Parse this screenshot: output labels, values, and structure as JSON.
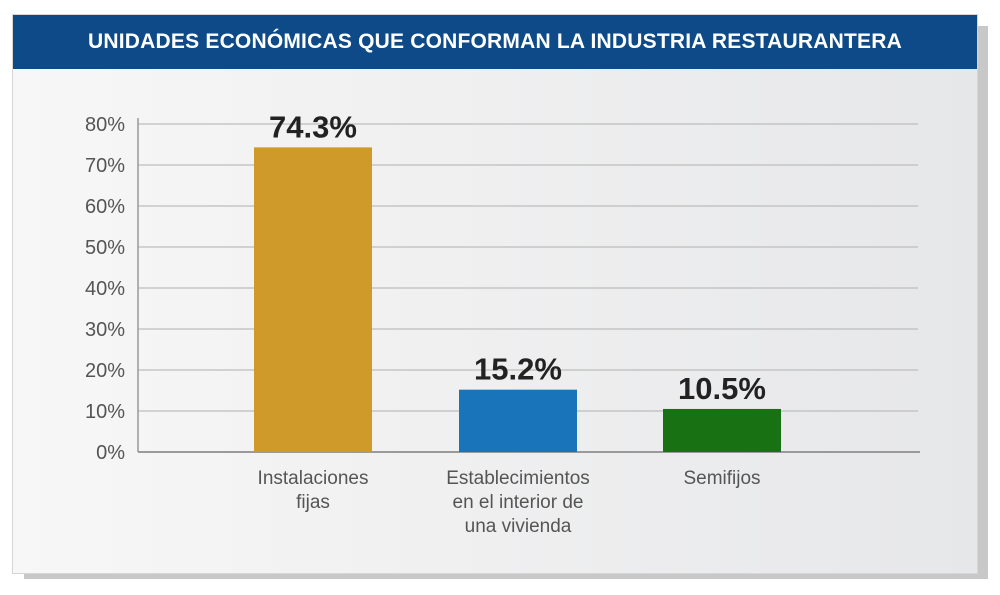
{
  "header": {
    "title": "UNIDADES ECONÓMICAS QUE CONFORMAN LA INDUSTRIA RESTAURANTERA"
  },
  "colors": {
    "header_bg": "#0e4a87",
    "gridline": "#bdbdbd",
    "axis": "#9a9a9a"
  },
  "chart_data": {
    "type": "bar",
    "title": "UNIDADES ECONÓMICAS QUE CONFORMAN LA INDUSTRIA RESTAURANTERA",
    "categories": [
      [
        "Instalaciones",
        "fijas"
      ],
      [
        "Establecimientos",
        "en el interior de",
        "una vivienda"
      ],
      [
        "Semifijos"
      ]
    ],
    "values": [
      74.3,
      15.2,
      10.5
    ],
    "value_labels": [
      "74.3%",
      "15.2%",
      "10.5%"
    ],
    "bar_colors": [
      "#d09a2a",
      "#1a74ba",
      "#187214"
    ],
    "yticks": [
      "0%",
      "10%",
      "20%",
      "30%",
      "40%",
      "50%",
      "60%",
      "70%",
      "80%"
    ],
    "ylim": [
      0,
      80
    ],
    "xlabel": "",
    "ylabel": "",
    "grid": true,
    "legend": "none"
  }
}
